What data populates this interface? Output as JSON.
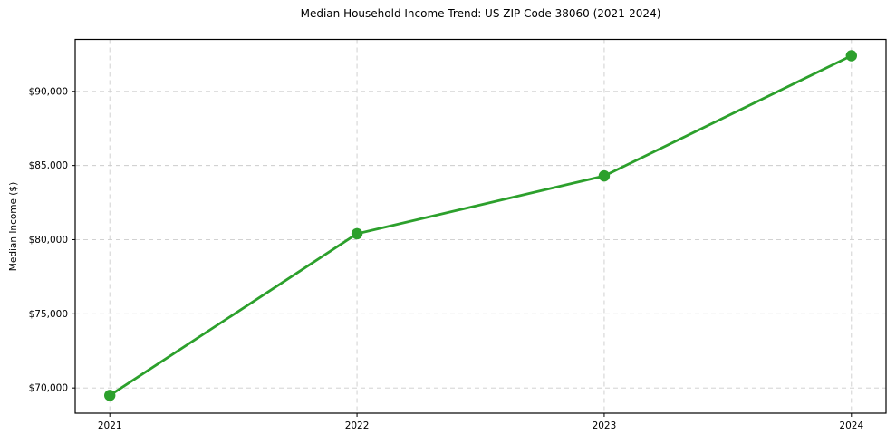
{
  "figure": {
    "background": "#ffffff"
  },
  "chart_data": {
    "type": "line",
    "title": "Median Household Income Trend: US ZIP Code 38060 (2021-2024)",
    "xlabel": "",
    "ylabel": "Median Income ($)",
    "x": [
      2021,
      2022,
      2023,
      2024
    ],
    "series": [
      {
        "name": "Median Household Income",
        "values": [
          69500,
          80400,
          84300,
          92400
        ]
      }
    ],
    "x_tick_labels": [
      "2021",
      "2022",
      "2023",
      "2024"
    ],
    "y_ticks": [
      70000,
      75000,
      80000,
      85000,
      90000
    ],
    "y_tick_labels": [
      "$70,000",
      "$75,000",
      "$80,000",
      "$85,000",
      "$90,000"
    ],
    "xlim": [
      2020.86,
      2024.14
    ],
    "ylim": [
      68300,
      93500
    ],
    "grid": true,
    "grid_style": "dashed",
    "legend_position": "none",
    "line_color": "#2ca02c",
    "marker": "circle",
    "marker_color": "#2ca02c",
    "grid_color": "#cccccc",
    "spine_color": "#000000",
    "text_color": "#000000",
    "plot_background": "#ffffff"
  }
}
